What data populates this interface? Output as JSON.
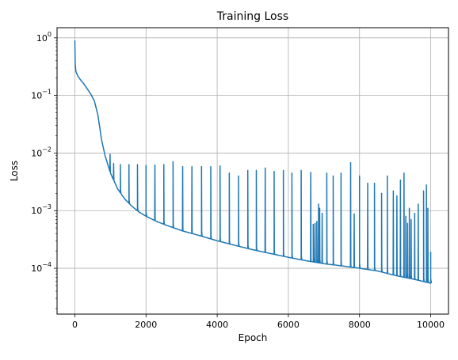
{
  "chart_data": {
    "type": "line",
    "title": "Training Loss",
    "xlabel": "Epoch",
    "ylabel": "Loss",
    "x_scale": "linear",
    "y_scale": "log",
    "xlim": [
      -500,
      10500
    ],
    "ylim": [
      1.6e-05,
      1.5
    ],
    "grid": true,
    "line_color": "#1f77b4",
    "x_ticks": [
      0,
      2000,
      4000,
      6000,
      8000,
      10000
    ],
    "x_tick_labels": [
      "0",
      "2000",
      "4000",
      "6000",
      "8000",
      "10000"
    ],
    "y_ticks": [
      0.0001,
      0.001,
      0.01,
      0.1,
      1
    ],
    "y_tick_labels": [
      {
        "base": "10",
        "exp": "−4"
      },
      {
        "base": "10",
        "exp": "−3"
      },
      {
        "base": "10",
        "exp": "−2"
      },
      {
        "base": "10",
        "exp": "−1"
      },
      {
        "base": "10",
        "exp": "0"
      }
    ],
    "series": [
      {
        "baseline": [
          [
            0,
            0.9
          ],
          [
            10,
            0.35
          ],
          [
            30,
            0.26
          ],
          [
            80,
            0.22
          ],
          [
            150,
            0.19
          ],
          [
            250,
            0.16
          ],
          [
            350,
            0.13
          ],
          [
            450,
            0.105
          ],
          [
            550,
            0.08
          ],
          [
            650,
            0.045
          ],
          [
            750,
            0.017
          ],
          [
            850,
            0.009
          ],
          [
            1000,
            0.0045
          ],
          [
            1200,
            0.0024
          ],
          [
            1400,
            0.0016
          ],
          [
            1600,
            0.0012
          ],
          [
            1800,
            0.00095
          ],
          [
            2000,
            0.0008
          ],
          [
            2300,
            0.00065
          ],
          [
            2600,
            0.00055
          ],
          [
            3000,
            0.00045
          ],
          [
            3500,
            0.00037
          ],
          [
            4000,
            0.0003
          ],
          [
            4500,
            0.00025
          ],
          [
            5000,
            0.00021
          ],
          [
            5500,
            0.00018
          ],
          [
            6000,
            0.000155
          ],
          [
            6500,
            0.000135
          ],
          [
            7000,
            0.00012
          ],
          [
            7500,
            0.00011
          ],
          [
            8000,
            0.0001
          ],
          [
            8500,
            9e-05
          ],
          [
            9000,
            7.5e-05
          ],
          [
            9500,
            6.5e-05
          ],
          [
            10000,
            5.5e-05
          ]
        ],
        "spikes": [
          [
            990,
            0.0095
          ],
          [
            1090,
            0.0066
          ],
          [
            1280,
            0.0063
          ],
          [
            1520,
            0.0063
          ],
          [
            1760,
            0.0063
          ],
          [
            2000,
            0.0061
          ],
          [
            2250,
            0.0062
          ],
          [
            2500,
            0.0063
          ],
          [
            2760,
            0.0071
          ],
          [
            3030,
            0.0058
          ],
          [
            3290,
            0.0058
          ],
          [
            3560,
            0.0058
          ],
          [
            3820,
            0.0058
          ],
          [
            4080,
            0.006
          ],
          [
            4340,
            0.0045
          ],
          [
            4600,
            0.004
          ],
          [
            4860,
            0.005
          ],
          [
            5100,
            0.005
          ],
          [
            5350,
            0.0055
          ],
          [
            5600,
            0.0048
          ],
          [
            5860,
            0.005
          ],
          [
            6100,
            0.0045
          ],
          [
            6360,
            0.005
          ],
          [
            6630,
            0.0046
          ],
          [
            6700,
            0.00058
          ],
          [
            6750,
            0.0006
          ],
          [
            6800,
            0.00065
          ],
          [
            6850,
            0.0013
          ],
          [
            6880,
            0.0011
          ],
          [
            6950,
            0.0009
          ],
          [
            7080,
            0.0045
          ],
          [
            7260,
            0.004
          ],
          [
            7480,
            0.0045
          ],
          [
            7750,
            0.0068
          ],
          [
            7850,
            0.00088
          ],
          [
            8000,
            0.004
          ],
          [
            8230,
            0.003
          ],
          [
            8420,
            0.003
          ],
          [
            8620,
            0.002
          ],
          [
            8780,
            0.004
          ],
          [
            8950,
            0.0022
          ],
          [
            9050,
            0.0018
          ],
          [
            9150,
            0.0034
          ],
          [
            9250,
            0.0045
          ],
          [
            9300,
            0.0008
          ],
          [
            9350,
            0.0006
          ],
          [
            9400,
            0.0011
          ],
          [
            9450,
            0.0007
          ],
          [
            9550,
            0.0009
          ],
          [
            9650,
            0.0013
          ],
          [
            9800,
            0.0022
          ],
          [
            9880,
            0.0028
          ],
          [
            9920,
            0.0011
          ],
          [
            10000,
            0.00019
          ]
        ]
      }
    ]
  }
}
